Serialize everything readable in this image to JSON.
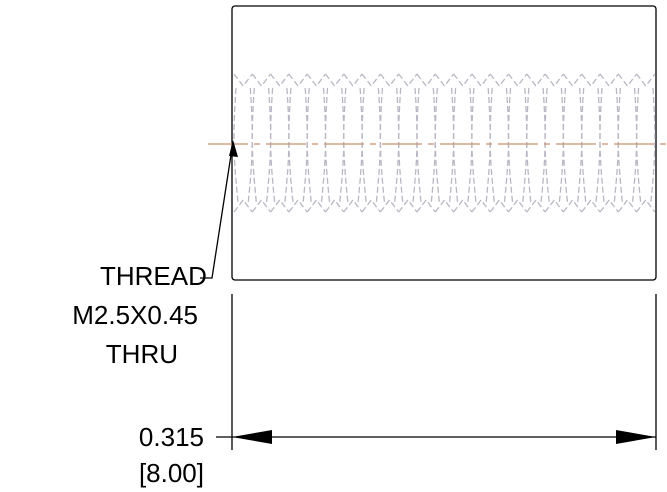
{
  "callout": {
    "line1": "THREAD",
    "line2": "M2.5X0.45",
    "line3": "THRU"
  },
  "dimension": {
    "inches": "0.315",
    "millimeters": "[8.00]"
  },
  "colors": {
    "outline": "#000000",
    "thread_hidden": "#b8b8c4",
    "centerline": "#c8926e"
  }
}
